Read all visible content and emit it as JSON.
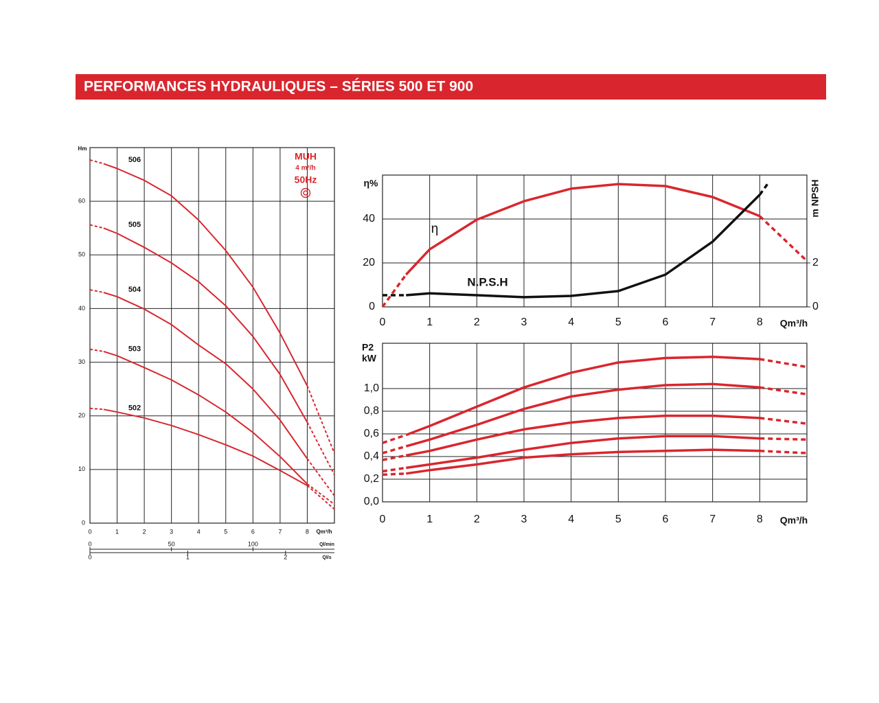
{
  "header": {
    "title": "PERFORMANCES HYDRAULIQUES – SÉRIES 500 ET 900"
  },
  "chart_data": [
    {
      "type": "line",
      "ylabel": "Hm",
      "xlabel": "Qm³/h",
      "x": [
        0,
        0.5,
        1,
        2,
        3,
        4,
        5,
        6,
        7,
        8,
        9
      ],
      "xlim": [
        0,
        9
      ],
      "xticks": [
        0,
        1,
        2,
        3,
        4,
        5,
        6,
        7,
        8
      ],
      "ylim": [
        0,
        70
      ],
      "yticks": [
        0,
        10,
        20,
        30,
        40,
        50,
        60
      ],
      "grid": true,
      "solid_x": [
        0.5,
        8
      ],
      "x2label": "Ql/min",
      "x2lim": [
        0,
        150
      ],
      "x2ticks": [
        0,
        50,
        100
      ],
      "x3label": "Ql/s",
      "x3lim": [
        0,
        2.5
      ],
      "x3ticks": [
        0,
        1,
        2
      ],
      "annotations": [
        "MUH",
        "4 m³/h",
        "50Hz"
      ],
      "series": [
        {
          "name": "506",
          "color": "#d9262e",
          "values": [
            67.7,
            67.0,
            66.1,
            63.9,
            61.0,
            56.5,
            50.8,
            44.0,
            35.4,
            25.6,
            13.0
          ]
        },
        {
          "name": "505",
          "color": "#d9262e",
          "values": [
            55.6,
            55.0,
            54.0,
            51.4,
            48.5,
            45.0,
            40.5,
            34.8,
            27.7,
            18.8,
            9.0
          ]
        },
        {
          "name": "504",
          "color": "#d9262e",
          "values": [
            43.5,
            43.0,
            42.2,
            39.9,
            37.0,
            33.2,
            29.7,
            25.0,
            19.2,
            12.0,
            5.1
          ]
        },
        {
          "name": "503",
          "color": "#d9262e",
          "values": [
            32.4,
            32.0,
            31.2,
            29.0,
            26.7,
            23.9,
            20.7,
            16.9,
            12.4,
            7.3,
            3.5
          ]
        },
        {
          "name": "502",
          "color": "#d9262e",
          "values": [
            21.4,
            21.2,
            20.7,
            19.6,
            18.2,
            16.5,
            14.6,
            12.5,
            9.8,
            7.0,
            2.6
          ]
        }
      ]
    },
    {
      "type": "line",
      "ylabel": "η%",
      "xlabel": "Qm³/h",
      "y2label": "m NPSH",
      "x": [
        0,
        0.5,
        1,
        2,
        3,
        4,
        5,
        6,
        7,
        8,
        9
      ],
      "xlim": [
        0,
        9
      ],
      "xticks": [
        0,
        1,
        2,
        3,
        4,
        5,
        6,
        7,
        8
      ],
      "ylim": [
        0,
        60
      ],
      "yticks": [
        0,
        20,
        40
      ],
      "y2lim": [
        0,
        6
      ],
      "y2ticks": [
        0,
        2
      ],
      "grid": true,
      "solid_x": [
        0.5,
        8
      ],
      "series": [
        {
          "name": "η",
          "color": "#d9262e",
          "values": [
            0,
            14.7,
            26.2,
            39.7,
            48.1,
            53.8,
            55.9,
            55.0,
            50.0,
            41.3,
            20.9
          ]
        },
        {
          "name": "N.P.S.H",
          "color": "#111111",
          "axis": "y2",
          "x": [
            0,
            0.5,
            1,
            2,
            3,
            4,
            5,
            6,
            7,
            8,
            8.2
          ],
          "values": [
            0.53,
            0.53,
            0.62,
            0.53,
            0.44,
            0.5,
            0.72,
            1.47,
            2.97,
            5.1,
            5.7
          ]
        }
      ]
    },
    {
      "type": "line",
      "ylabel": [
        "P2",
        "kW"
      ],
      "xlabel": "Qm³/h",
      "x": [
        0,
        0.5,
        1,
        2,
        3,
        4,
        5,
        6,
        7,
        8,
        9
      ],
      "xlim": [
        0,
        9
      ],
      "xticks": [
        0,
        1,
        2,
        3,
        4,
        5,
        6,
        7,
        8
      ],
      "ylim": [
        0,
        1.4
      ],
      "yticks": [
        {
          "value": 0,
          "label": "0,0"
        },
        {
          "value": 0.2,
          "label": "0,2"
        },
        {
          "value": 0.4,
          "label": "0,4"
        },
        {
          "value": 0.6,
          "label": "0,6"
        },
        {
          "value": 0.8,
          "label": "0,8"
        },
        {
          "value": 1.0,
          "label": "1,0"
        }
      ],
      "grid": true,
      "solid_x": [
        0.5,
        8
      ],
      "series": [
        {
          "color": "#d9262e",
          "values": [
            0.52,
            0.59,
            0.67,
            0.84,
            1.01,
            1.14,
            1.23,
            1.27,
            1.28,
            1.26,
            1.19
          ]
        },
        {
          "color": "#d9262e",
          "values": [
            0.43,
            0.49,
            0.55,
            0.68,
            0.82,
            0.93,
            0.99,
            1.03,
            1.04,
            1.01,
            0.95
          ]
        },
        {
          "color": "#d9262e",
          "values": [
            0.37,
            0.41,
            0.45,
            0.55,
            0.64,
            0.7,
            0.74,
            0.76,
            0.76,
            0.74,
            0.69
          ]
        },
        {
          "color": "#d9262e",
          "values": [
            0.27,
            0.3,
            0.33,
            0.39,
            0.46,
            0.52,
            0.56,
            0.58,
            0.58,
            0.56,
            0.55
          ]
        },
        {
          "color": "#d9262e",
          "values": [
            0.24,
            0.25,
            0.28,
            0.33,
            0.39,
            0.42,
            0.44,
            0.45,
            0.46,
            0.45,
            0.43
          ]
        }
      ]
    }
  ]
}
